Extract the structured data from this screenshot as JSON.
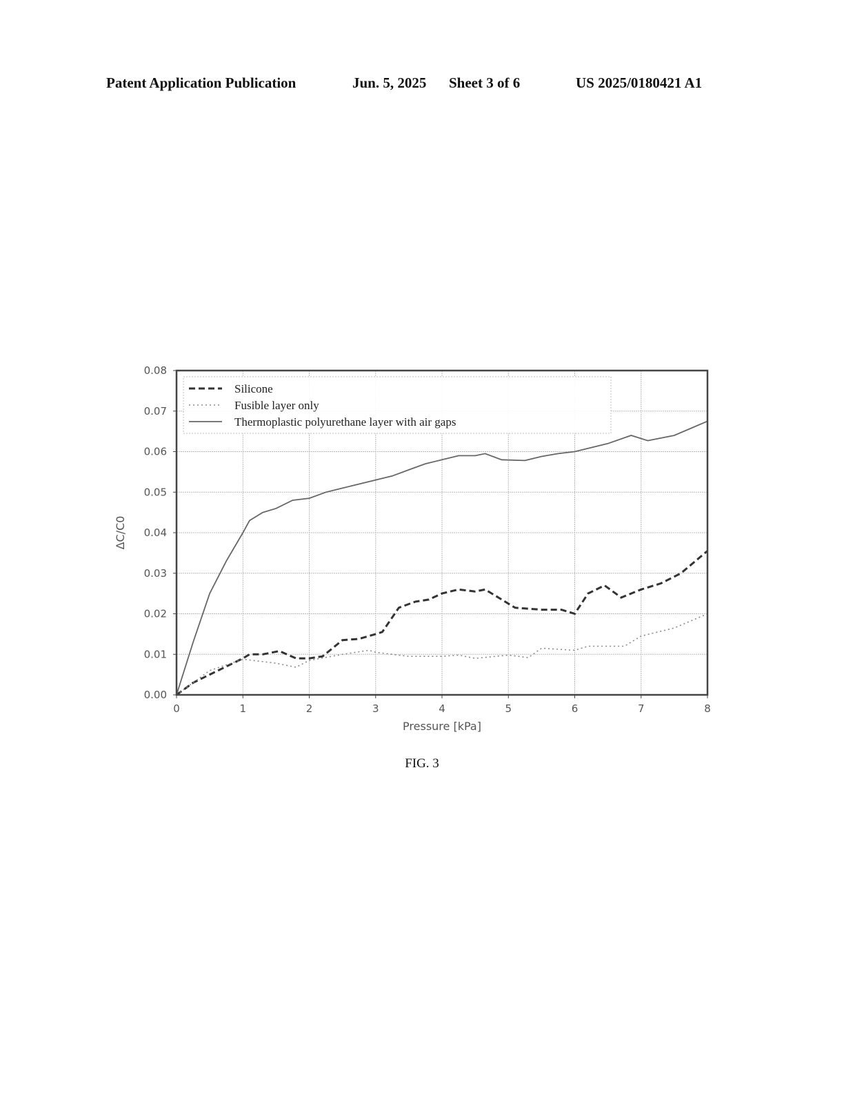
{
  "header": {
    "left": "Patent Application Publication",
    "date": "Jun. 5, 2025",
    "sheet": "Sheet 3 of 6",
    "number": "US 2025/0180421 A1"
  },
  "caption": "FIG. 3",
  "chart_data": {
    "type": "line",
    "title": "",
    "xlabel": "Pressure [kPa]",
    "ylabel": "ΔC/C0",
    "xlim": [
      0,
      8
    ],
    "ylim": [
      0,
      0.08
    ],
    "xticks": [
      "0",
      "1",
      "2",
      "3",
      "4",
      "5",
      "6",
      "7",
      "8"
    ],
    "yticks": [
      "0.00",
      "0.01",
      "0.02",
      "0.03",
      "0.04",
      "0.05",
      "0.06",
      "0.07",
      "0.08"
    ],
    "grid": true,
    "legend_position": "top-left",
    "series": [
      {
        "name": "Silicone",
        "style": "dashed",
        "x": [
          0,
          0.25,
          0.5,
          0.75,
          1,
          1.1,
          1.3,
          1.55,
          1.8,
          2,
          2.2,
          2.5,
          2.75,
          3,
          3.1,
          3.35,
          3.6,
          3.8,
          4,
          4.25,
          4.5,
          4.65,
          5,
          5.1,
          5.5,
          5.8,
          6,
          6.2,
          6.45,
          6.7,
          7,
          7.3,
          7.6,
          8
        ],
        "y": [
          0,
          0.003,
          0.005,
          0.007,
          0.009,
          0.01,
          0.01,
          0.0108,
          0.009,
          0.009,
          0.0095,
          0.0135,
          0.0138,
          0.015,
          0.0155,
          0.0215,
          0.023,
          0.0235,
          0.025,
          0.026,
          0.0255,
          0.026,
          0.0225,
          0.0215,
          0.021,
          0.021,
          0.02,
          0.025,
          0.027,
          0.024,
          0.026,
          0.0275,
          0.03,
          0.0355
        ]
      },
      {
        "name": "Fusible layer only",
        "style": "dotted",
        "x": [
          0,
          0.5,
          1,
          1.5,
          1.8,
          2,
          2.5,
          2.9,
          3,
          3.5,
          4,
          4.25,
          4.5,
          5,
          5.3,
          5.5,
          6,
          6.2,
          6.75,
          7,
          7.5,
          8
        ],
        "y": [
          0,
          0.006,
          0.0088,
          0.0078,
          0.0068,
          0.0085,
          0.01,
          0.011,
          0.0105,
          0.0095,
          0.0095,
          0.0098,
          0.009,
          0.0098,
          0.0092,
          0.0115,
          0.011,
          0.012,
          0.012,
          0.0145,
          0.0165,
          0.02
        ]
      },
      {
        "name": "Thermoplastic polyurethane layer with air gaps",
        "style": "solid",
        "x": [
          0,
          0.25,
          0.5,
          0.75,
          1,
          1.1,
          1.3,
          1.5,
          1.75,
          2,
          2.25,
          2.5,
          2.75,
          3,
          3.25,
          3.5,
          3.75,
          4,
          4.25,
          4.5,
          4.65,
          4.9,
          5.25,
          5.5,
          5.75,
          6,
          6.25,
          6.5,
          6.85,
          7.1,
          7.5,
          8
        ],
        "y": [
          0,
          0.013,
          0.025,
          0.033,
          0.04,
          0.043,
          0.045,
          0.046,
          0.048,
          0.0485,
          0.05,
          0.051,
          0.052,
          0.053,
          0.054,
          0.0555,
          0.057,
          0.058,
          0.059,
          0.059,
          0.0595,
          0.058,
          0.0578,
          0.0588,
          0.0595,
          0.06,
          0.061,
          0.062,
          0.064,
          0.0627,
          0.064,
          0.0675
        ]
      }
    ]
  }
}
